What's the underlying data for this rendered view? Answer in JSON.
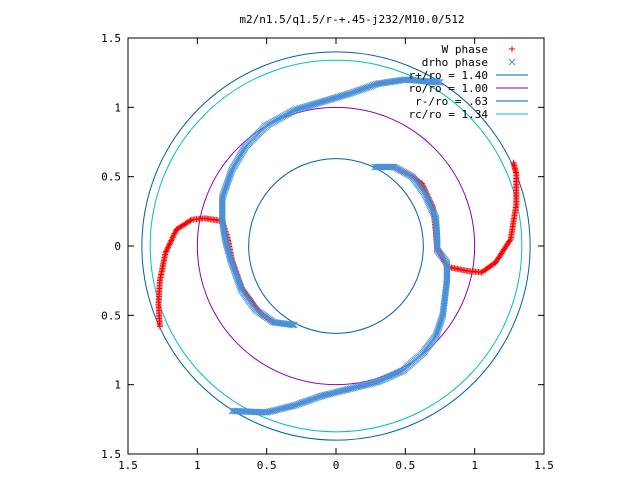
{
  "chart_data": {
    "type": "scatter",
    "title": "m2/n1.5/q1.5/r-+.45-j232/M10.0/512",
    "xlabel": "",
    "ylabel": "",
    "xlim": [
      -1.5,
      1.5
    ],
    "ylim": [
      -1.5,
      1.5
    ],
    "grid": false,
    "legend_position": "top-right",
    "x_ticks": [
      {
        "value": -1.5,
        "label": "1.5"
      },
      {
        "value": -1.0,
        "label": "1"
      },
      {
        "value": -0.5,
        "label": "0.5"
      },
      {
        "value": 0.0,
        "label": "0"
      },
      {
        "value": 0.5,
        "label": "0.5"
      },
      {
        "value": 1.0,
        "label": "1"
      },
      {
        "value": 1.5,
        "label": "1.5"
      }
    ],
    "y_ticks": [
      {
        "value": 1.5,
        "label": "1.5"
      },
      {
        "value": 1.0,
        "label": "1"
      },
      {
        "value": 0.5,
        "label": "0.5"
      },
      {
        "value": 0.0,
        "label": "0"
      },
      {
        "value": -0.5,
        "label": "0.5"
      },
      {
        "value": -1.0,
        "label": "1"
      },
      {
        "value": -1.5,
        "label": "1.5"
      }
    ],
    "circles": [
      {
        "name": "r+/ro = 1.40",
        "radius": 1.4,
        "color": "#0060ad"
      },
      {
        "name": "ro/ro = 1.00",
        "radius": 1.0,
        "color": "#8b00b8"
      },
      {
        "name": "r-/ro = .63",
        "radius": 0.63,
        "color": "#0060ad"
      },
      {
        "name": "rc/ro = 1.34",
        "radius": 1.34,
        "color": "#00c0c0"
      }
    ],
    "series": [
      {
        "name": "W phase",
        "marker": "+",
        "color": "#ff0000",
        "paths": [
          [
            [
              0.73,
              -0.03
            ],
            [
              0.72,
              0.1
            ],
            [
              0.7,
              0.28
            ],
            [
              0.62,
              0.45
            ],
            [
              0.55,
              0.5
            ],
            [
              0.42,
              0.57
            ]
          ],
          [
            [
              0.74,
              -0.03
            ],
            [
              0.8,
              -0.15
            ],
            [
              0.95,
              -0.18
            ],
            [
              1.05,
              -0.19
            ],
            [
              1.15,
              -0.12
            ],
            [
              1.26,
              0.05
            ],
            [
              1.3,
              0.3
            ],
            [
              1.3,
              0.52
            ],
            [
              1.28,
              0.6
            ]
          ],
          [
            [
              -0.82,
              0.18
            ],
            [
              -0.95,
              0.2
            ],
            [
              -1.04,
              0.19
            ],
            [
              -1.15,
              0.12
            ],
            [
              -1.23,
              -0.05
            ],
            [
              -1.27,
              -0.25
            ],
            [
              -1.28,
              -0.42
            ],
            [
              -1.27,
              -0.58
            ]
          ],
          [
            [
              -0.82,
              0.18
            ],
            [
              -0.78,
              0.05
            ],
            [
              -0.75,
              -0.1
            ],
            [
              -0.68,
              -0.3
            ],
            [
              -0.55,
              -0.48
            ],
            [
              -0.45,
              -0.55
            ]
          ]
        ]
      },
      {
        "name": "drho phase",
        "marker": "x",
        "color": "#4a90d9",
        "paths": [
          [
            [
              0.28,
              0.57
            ],
            [
              0.42,
              0.57
            ],
            [
              0.55,
              0.5
            ],
            [
              0.64,
              0.38
            ],
            [
              0.72,
              0.2
            ],
            [
              0.73,
              0.05
            ],
            [
              0.73,
              -0.03
            ],
            [
              0.8,
              -0.12
            ],
            [
              0.8,
              -0.25
            ],
            [
              0.77,
              -0.5
            ],
            [
              0.72,
              -0.65
            ],
            [
              0.62,
              -0.78
            ],
            [
              0.48,
              -0.9
            ],
            [
              0.3,
              -0.98
            ],
            [
              0.1,
              -1.03
            ],
            [
              -0.1,
              -1.08
            ],
            [
              -0.3,
              -1.15
            ],
            [
              -0.5,
              -1.2
            ],
            [
              -0.75,
              -1.19
            ]
          ],
          [
            [
              -0.3,
              -0.57
            ],
            [
              -0.45,
              -0.55
            ],
            [
              -0.58,
              -0.46
            ],
            [
              -0.68,
              -0.32
            ],
            [
              -0.76,
              -0.1
            ],
            [
              -0.8,
              0.05
            ],
            [
              -0.82,
              0.18
            ],
            [
              -0.82,
              0.35
            ],
            [
              -0.75,
              0.55
            ],
            [
              -0.65,
              0.72
            ],
            [
              -0.5,
              0.87
            ],
            [
              -0.3,
              0.98
            ],
            [
              -0.1,
              1.04
            ],
            [
              0.1,
              1.1
            ],
            [
              0.3,
              1.17
            ],
            [
              0.5,
              1.2
            ],
            [
              0.75,
              1.18
            ]
          ]
        ]
      }
    ]
  }
}
